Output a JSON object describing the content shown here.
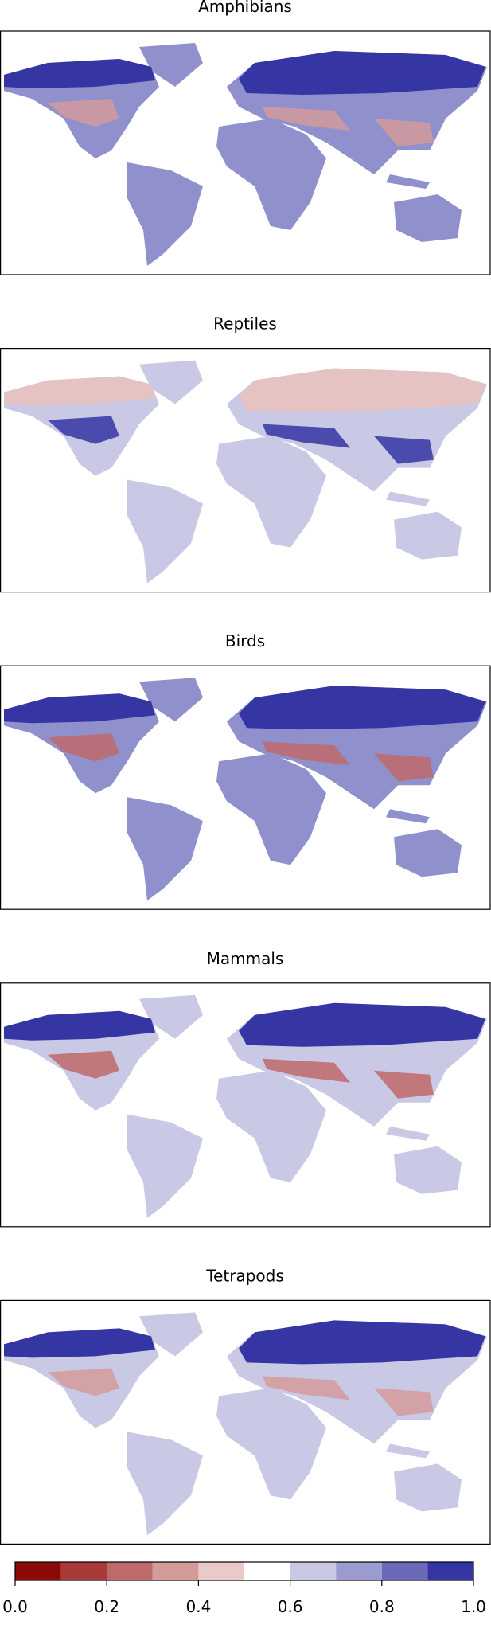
{
  "panels": [
    {
      "title": "Amphibians"
    },
    {
      "title": "Reptiles"
    },
    {
      "title": "Birds"
    },
    {
      "title": "Mammals"
    },
    {
      "title": "Tetrapods"
    }
  ],
  "colorbar": {
    "clim": [
      0,
      1
    ],
    "colors": [
      "#8b0a0a",
      "#a83a3a",
      "#bf6a6a",
      "#d49b9b",
      "#eac9c9",
      "#ffffff",
      "#c9c9e6",
      "#9b9bd0",
      "#6a6ab8",
      "#3535a3"
    ],
    "ticks": [
      {
        "value": 0,
        "label": "0.0"
      },
      0.2,
      0.4,
      0.6,
      0.8,
      {
        "value": 1,
        "label": "1.0"
      }
    ]
  }
}
